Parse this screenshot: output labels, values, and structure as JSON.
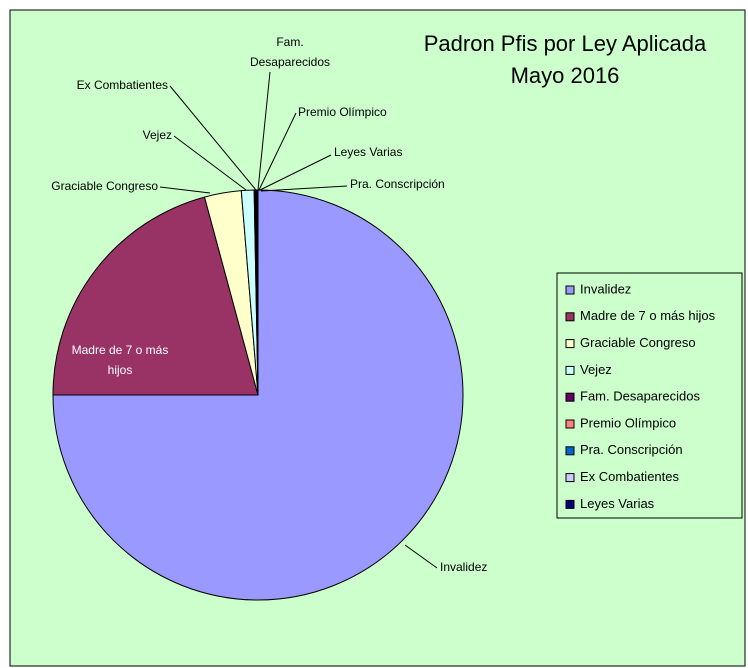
{
  "chart_data": {
    "type": "pie",
    "title": [
      "Padron Pfis por Ley Aplicada",
      "Mayo 2016"
    ],
    "categories": [
      "Invalidez",
      "Madre de 7 o más hijos",
      "Graciable Congreso",
      "Vejez",
      "Fam. Desaparecidos",
      "Premio Olímpico",
      "Pra. Conscripción",
      "Ex Combatientes",
      "Leyes Varias"
    ],
    "values": [
      75,
      20.8,
      2.9,
      1.0,
      0.1,
      0.05,
      0.05,
      0.05,
      0.05
    ],
    "colors": [
      "#9999ff",
      "#993366",
      "#ffffcc",
      "#ccffff",
      "#660066",
      "#ff8080",
      "#0066cc",
      "#ccccff",
      "#000080"
    ],
    "legend": "right"
  }
}
